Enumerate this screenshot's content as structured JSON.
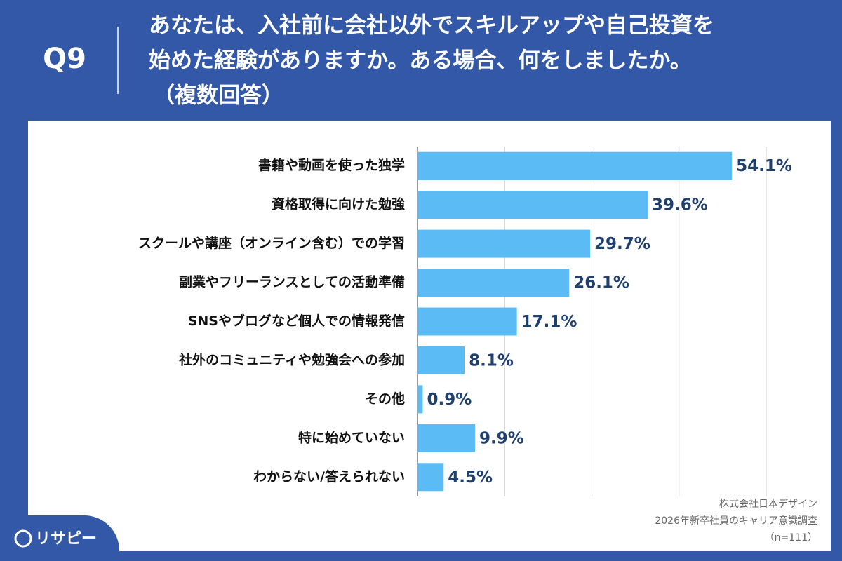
{
  "question": "Q9",
  "chart_data": {
    "type": "bar",
    "orientation": "horizontal",
    "title": [
      "あなたは、入社前に会社以外でスキルアップや自己投資を",
      "始めた経験がありますか。ある場合、何をしましたか。",
      "（複数回答）"
    ],
    "categories": [
      "書籍や動画を使った独学",
      "資格取得に向けた勉強",
      "スクールや講座（オンライン含む）での学習",
      "副業やフリーランスとしての活動準備",
      "SNSやブログなど個人での情報発信",
      "社外のコミュニティや勉強会への参加",
      "その他",
      "特に始めていない",
      "わからない/答えられない"
    ],
    "values": [
      54.1,
      39.6,
      29.7,
      26.1,
      17.1,
      8.1,
      0.9,
      9.9,
      4.5
    ],
    "value_labels": [
      "54.1%",
      "39.6%",
      "29.7%",
      "26.1%",
      "17.1%",
      "8.1%",
      "0.9%",
      "9.9%",
      "4.5%"
    ],
    "color": "#5bbcf5",
    "label_color": "#1f3f6e",
    "xlim": [
      0,
      60
    ],
    "xticks": [
      0,
      15,
      30,
      45,
      60
    ],
    "grid": true
  },
  "source": [
    "株式会社日本デザイン",
    "2026年新卒社員のキャリア意識調査",
    "（n=111）"
  ],
  "logo": "リサピー"
}
